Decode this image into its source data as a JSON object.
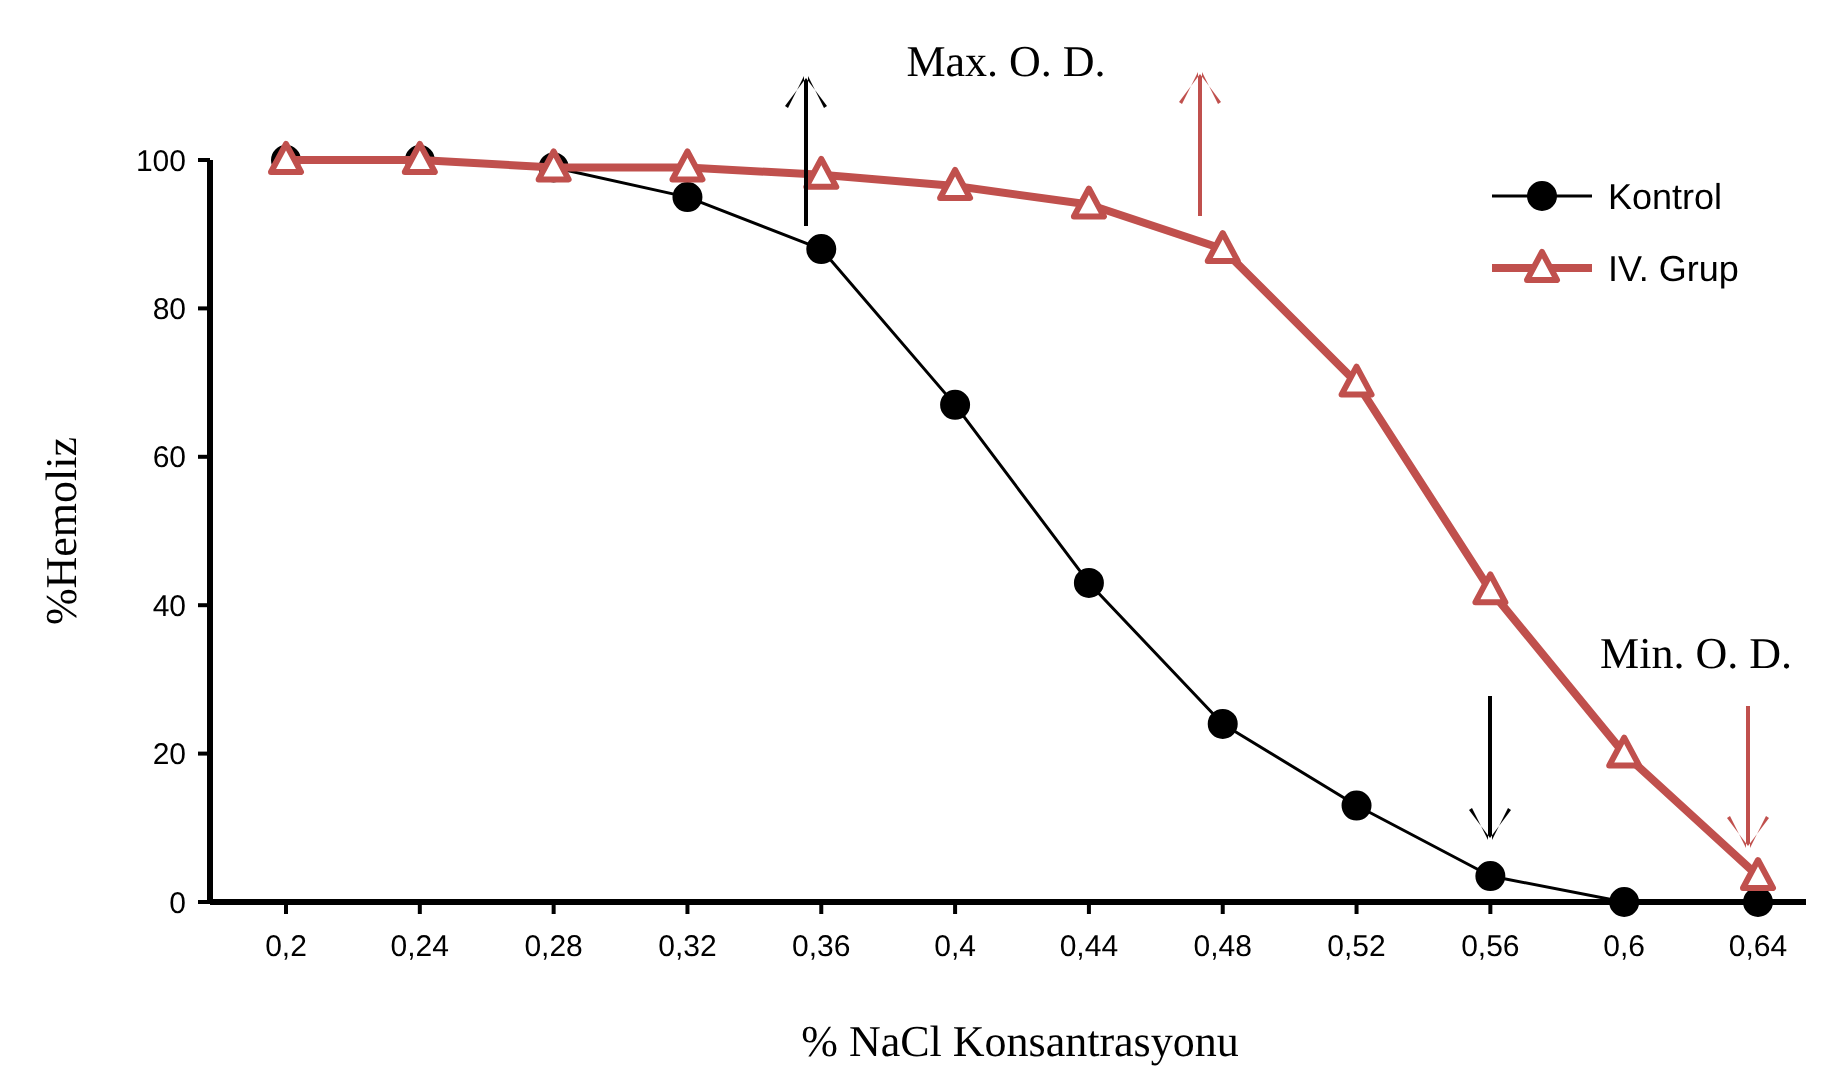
{
  "chart_data": {
    "type": "line",
    "xlabel": "% NaCl Konsantrasyonu",
    "ylabel": "%Hemoliz",
    "categories": [
      "0,2",
      "0,24",
      "0,28",
      "0,32",
      "0,36",
      "0,4",
      "0,44",
      "0,48",
      "0,52",
      "0,56",
      "0,6",
      "0,64"
    ],
    "series": [
      {
        "name": "Kontrol",
        "color": "#000000",
        "marker": "circle",
        "values": [
          100,
          100,
          99,
          95,
          88,
          67,
          43,
          24,
          13,
          3.5,
          0,
          0
        ]
      },
      {
        "name": "IV. Grup",
        "color": "#c0504d",
        "marker": "triangle",
        "values": [
          100,
          100,
          99,
          99,
          98,
          96.5,
          94,
          88,
          70,
          42,
          20,
          3.5
        ]
      }
    ],
    "ylim": [
      0,
      100
    ],
    "yticks": [
      0,
      20,
      40,
      60,
      80,
      100
    ],
    "grid": false,
    "legend": "top right",
    "annotations": [
      "Max. O. D.",
      "Min. O. D."
    ]
  }
}
